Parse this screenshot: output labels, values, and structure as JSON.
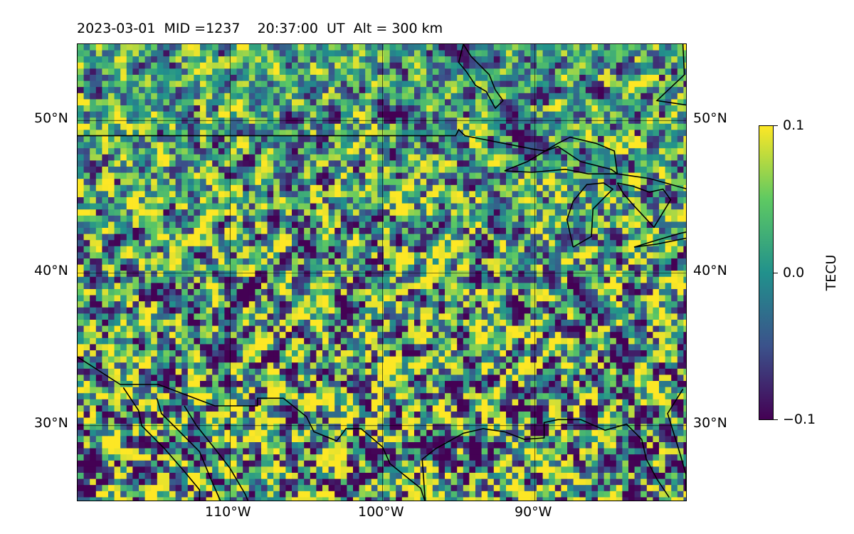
{
  "title": "2023-03-01  MID =1237    20:37:00  UT  Alt = 300 km",
  "map": {
    "projection": "rectilinear lat/lon",
    "extent": {
      "lon_min": -120,
      "lon_max": -80,
      "lat_min": 25,
      "lat_max": 55
    },
    "gridlines": true,
    "field": "TEC perturbation (gridded)"
  },
  "lat_ticks": [
    {
      "value": 50,
      "label": "50°N"
    },
    {
      "value": 40,
      "label": "40°N"
    },
    {
      "value": 30,
      "label": "30°N"
    }
  ],
  "lon_ticks": [
    {
      "value": -110,
      "label": "110°W"
    },
    {
      "value": -100,
      "label": "100°W"
    },
    {
      "value": -90,
      "label": "90°W"
    }
  ],
  "colorbar": {
    "colormap": "viridis",
    "min": -0.1,
    "max": 0.1,
    "title": "TECU",
    "ticks": [
      {
        "value": 0.1,
        "label": "0.1"
      },
      {
        "value": 0.0,
        "label": "0.0"
      },
      {
        "value": -0.1,
        "label": "−0.1"
      }
    ],
    "colors": [
      "#440154",
      "#3b528b",
      "#21918c",
      "#5ec962",
      "#fde725"
    ]
  },
  "coastline_color": "#000000"
}
